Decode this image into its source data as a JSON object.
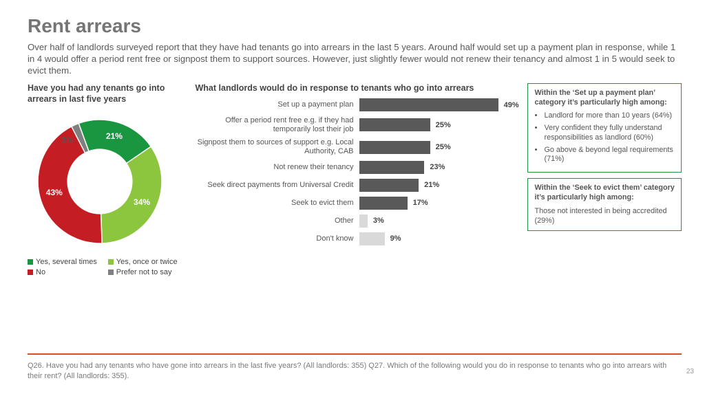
{
  "title": "Rent arrears",
  "lede": "Over half of landlords surveyed report that they have had tenants go into arrears in the last 5 years. Around half would set up a payment plan in response, while 1 in 4 would offer a period rent free or signpost them to support sources. However, just slightly fewer would not renew their tenancy and almost 1 in 5 would seek to evict them.",
  "donut": {
    "heading": "Have you had any tenants go into arrears in last five years",
    "slices": [
      {
        "label": "Yes, several times",
        "value": 21,
        "color": "#1a9641"
      },
      {
        "label": "Yes, once or twice",
        "value": 34,
        "color": "#8cc63f"
      },
      {
        "label": "No",
        "value": 43,
        "color": "#c41e24"
      },
      {
        "label": "Prefer not to say",
        "value": 2,
        "color": "#808080"
      }
    ],
    "inner_ratio": 0.52
  },
  "bars": {
    "heading": "What landlords would do in response to tenants who go into arrears",
    "bar_color": "#595959",
    "light_color": "#d9d9d9",
    "max_pct": 56,
    "items": [
      {
        "label": "Set up a payment plan",
        "value": 49,
        "light": false
      },
      {
        "label": "Offer a period rent free e.g. if they had temporarily lost their job",
        "value": 25,
        "light": false
      },
      {
        "label": "Signpost them to sources of support e.g. Local Authority, CAB",
        "value": 25,
        "light": false
      },
      {
        "label": "Not renew their tenancy",
        "value": 23,
        "light": false
      },
      {
        "label": "Seek direct payments from Universal Credit",
        "value": 21,
        "light": false
      },
      {
        "label": "Seek to evict them",
        "value": 17,
        "light": false
      },
      {
        "label": "Other",
        "value": 3,
        "light": true
      },
      {
        "label": "Don't know",
        "value": 9,
        "light": true
      }
    ]
  },
  "callouts": [
    {
      "border": "#1a9641",
      "title": "Within the ‘Set up a payment plan’ category it’s particularly high among:",
      "bullets": [
        "Landlord for more than 10 years (64%)",
        "Very confident they fully understand responsibilities as landlord (60%)",
        "Go above & beyond legal requirements (71%)"
      ]
    },
    {
      "border": "#1a9641",
      "title": "Within the ‘Seek to evict them’ category it’s particularly high among:",
      "body": "Those not interested in being accredited (29%)"
    }
  ],
  "rule_color": "#d94f2b",
  "footnote": "Q26. Have you had any tenants who have gone into arrears in the last five years? (All landlords: 355) Q27. Which of the following would you do in response to tenants who go into arrears with their rent? (All landlords: 355).",
  "pageno": "23"
}
